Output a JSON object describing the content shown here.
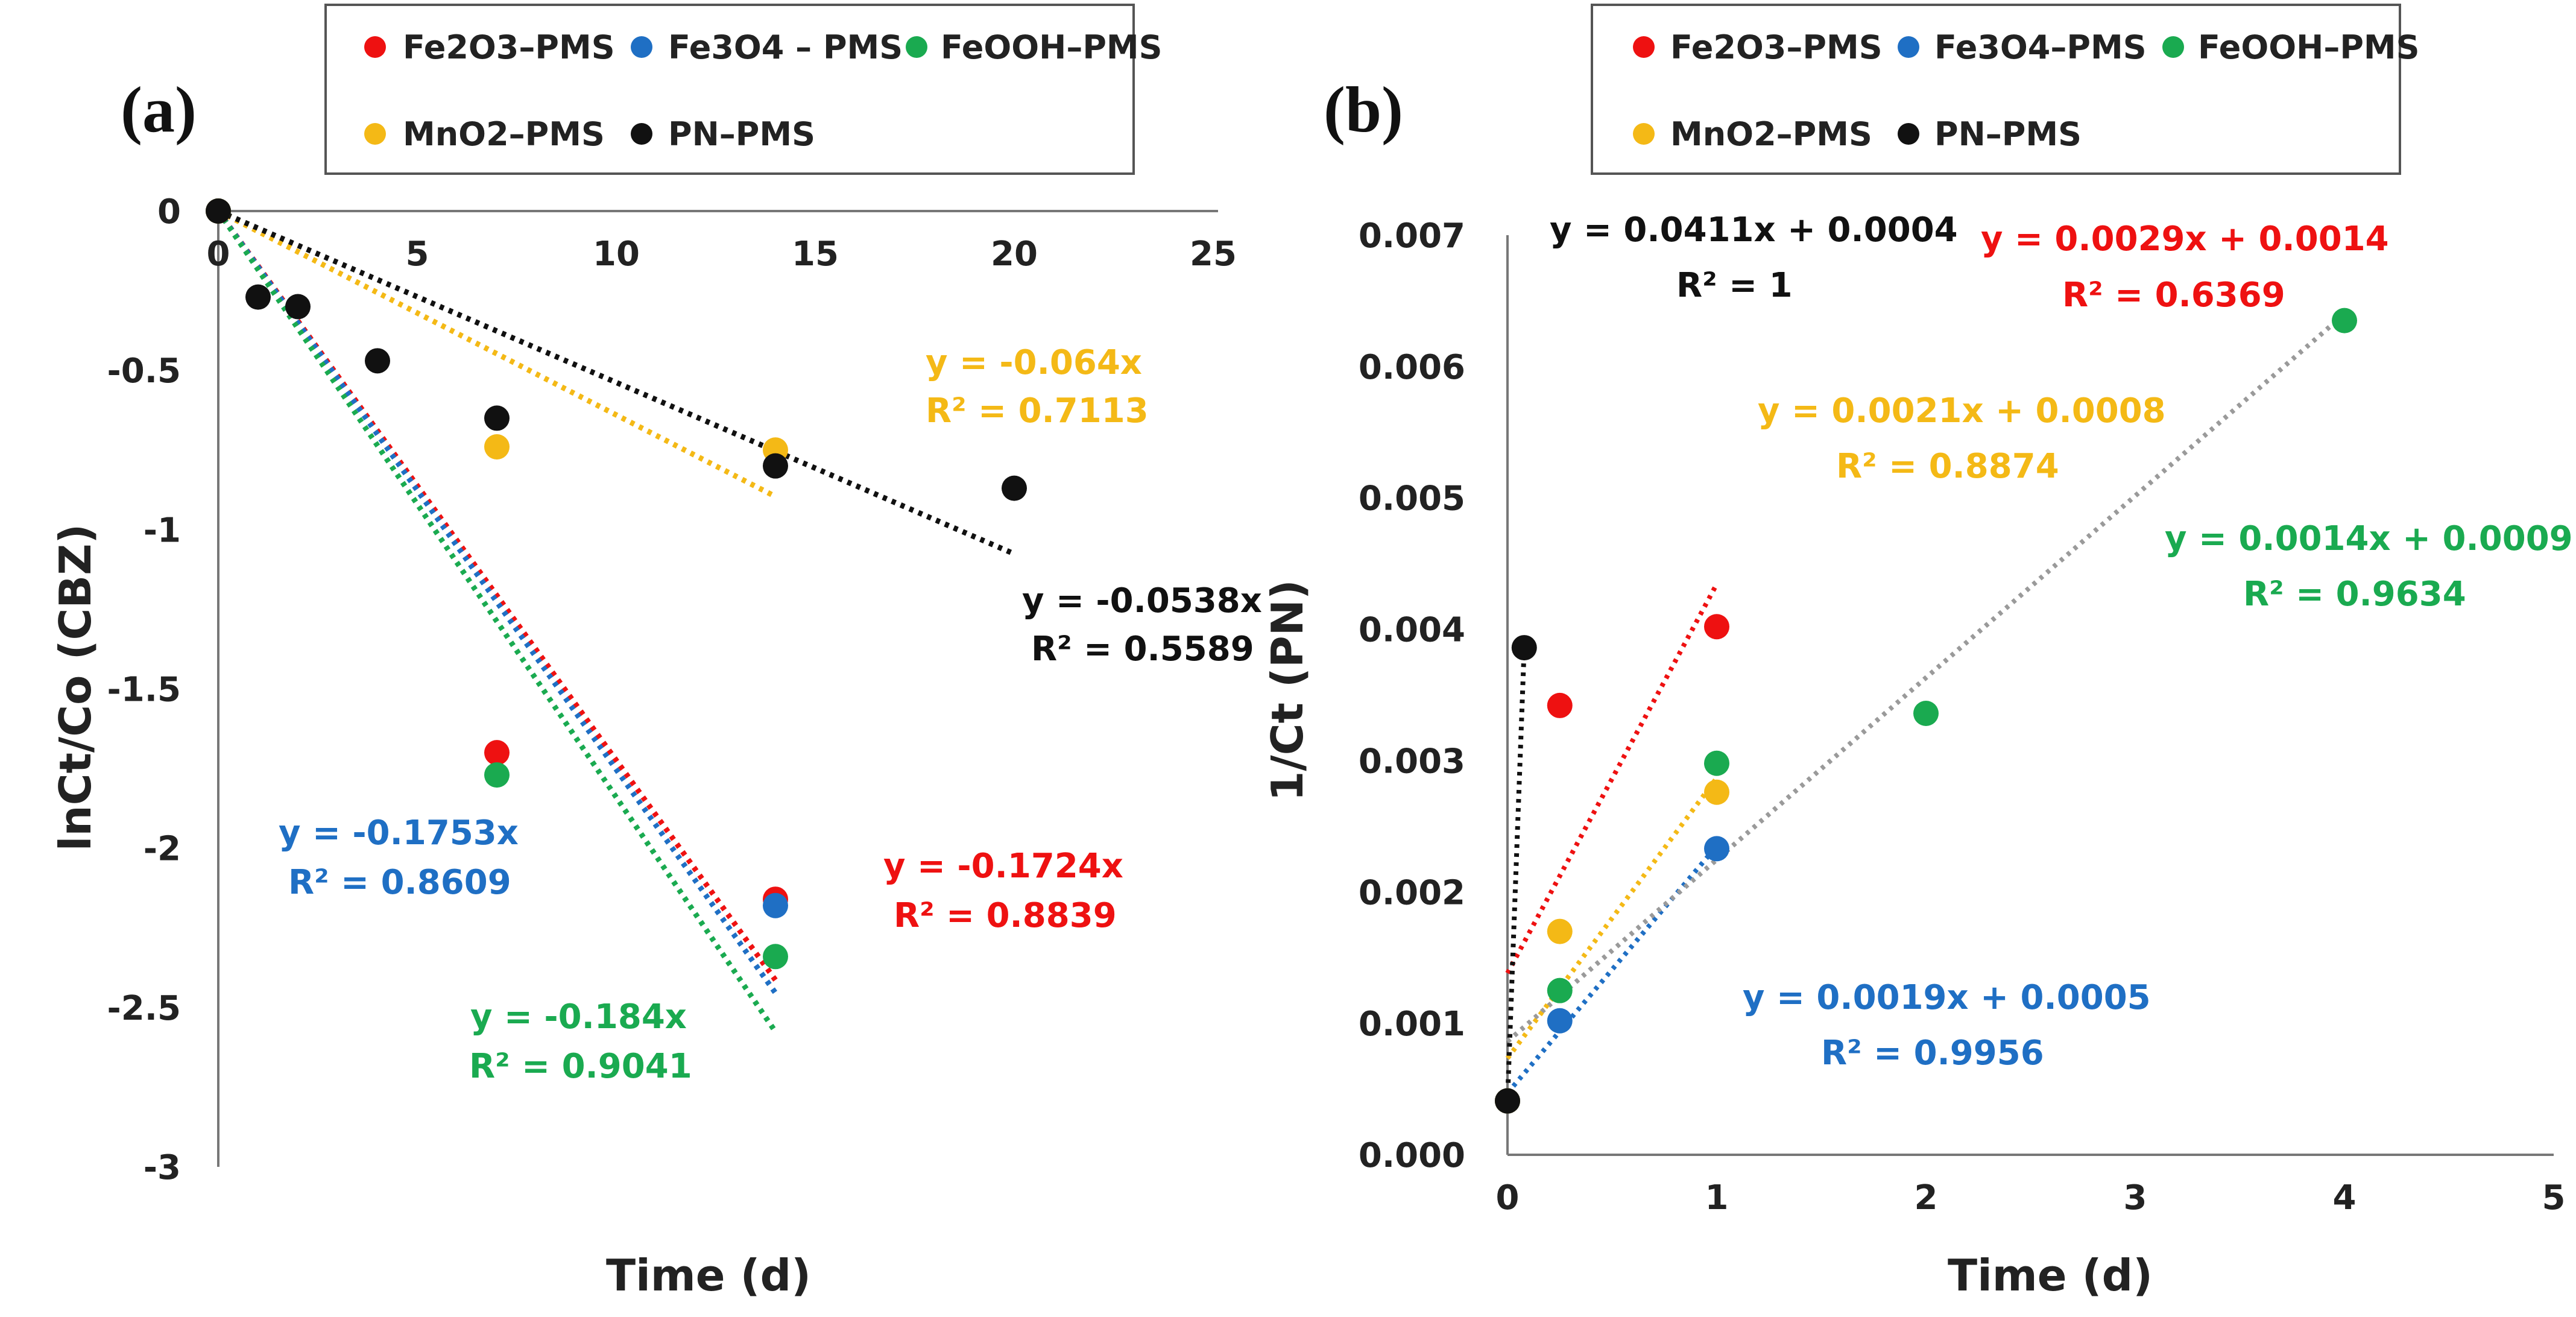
{
  "chart_data": [
    {
      "type": "scatter",
      "panel_label": "(a)",
      "xlabel": "Time (d)",
      "ylabel": "lnCt/Co (CBZ)",
      "xlim": [
        0,
        25
      ],
      "ylim": [
        -3,
        0
      ],
      "x_ticks": [
        "0",
        "5",
        "10",
        "15",
        "20",
        "25"
      ],
      "y_ticks": [
        "0",
        "-0.5",
        "-1",
        "-1.5",
        "-2",
        "-2.5",
        "-3"
      ],
      "legend": [
        "Fe2O3–PMS",
        "Fe3O4 – PMS",
        "FeOOH–PMS",
        "MnO2–PMS",
        "PN–PMS"
      ],
      "series": [
        {
          "name": "Fe2O3–PMS",
          "color": "#ee1111",
          "x": [
            0,
            7,
            14
          ],
          "y": [
            0,
            -1.7,
            -2.16
          ],
          "trend_slope": -0.1724,
          "trend_x": [
            0,
            14
          ],
          "equation": "y = -0.1724x",
          "r2": "R² = 0.8839"
        },
        {
          "name": "Fe3O4 – PMS",
          "color": "#1f6fc4",
          "x": [
            0,
            14
          ],
          "y": [
            0,
            -2.18
          ],
          "trend_slope": -0.1753,
          "trend_x": [
            0,
            14
          ],
          "equation": "y = -0.1753x",
          "r2": "R² = 0.8609"
        },
        {
          "name": "FeOOH–PMS",
          "color": "#1aaa50",
          "x": [
            0,
            7,
            14
          ],
          "y": [
            0,
            -1.77,
            -2.34
          ],
          "trend_slope": -0.184,
          "trend_x": [
            0,
            14
          ],
          "equation": "y = -0.184x",
          "r2": "R² = 0.9041"
        },
        {
          "name": "MnO2–PMS",
          "color": "#f4b916",
          "x": [
            0,
            7,
            14
          ],
          "y": [
            0,
            -0.74,
            -0.75
          ],
          "trend_slope": -0.064,
          "trend_x": [
            0,
            14
          ],
          "equation": "y = -0.064x",
          "r2": "R² = 0.7113"
        },
        {
          "name": "PN–PMS",
          "color": "#111111",
          "x": [
            0,
            1,
            2,
            4,
            7,
            14,
            20
          ],
          "y": [
            0,
            -0.27,
            -0.3,
            -0.47,
            -0.65,
            -0.8,
            -0.87
          ],
          "trend_slope": -0.0538,
          "trend_x": [
            0,
            20
          ],
          "equation": "y = -0.0538x",
          "r2": "R² = 0.5589"
        }
      ]
    },
    {
      "type": "scatter",
      "panel_label": "(b)",
      "xlabel": "Time (d)",
      "ylabel": "1/Ct (PN)",
      "xlim": [
        0,
        5
      ],
      "ylim": [
        0,
        0.007
      ],
      "x_ticks": [
        "0",
        "1",
        "2",
        "3",
        "4",
        "5"
      ],
      "y_ticks": [
        "0.000",
        "0.001",
        "0.002",
        "0.003",
        "0.004",
        "0.005",
        "0.006",
        "0.007"
      ],
      "legend": [
        "Fe2O3–PMS",
        "Fe3O4–PMS",
        "FeOOH–PMS",
        "MnO2–PMS",
        "PN–PMS"
      ],
      "series": [
        {
          "name": "Fe2O3–PMS",
          "color": "#ee1111",
          "x": [
            0,
            0.25,
            1
          ],
          "y": [
            0.00041,
            0.00342,
            0.00402
          ],
          "equation": "y = 0.0029x + 0.0014",
          "r2": "R² = 0.6369"
        },
        {
          "name": "Fe3O4–PMS",
          "color": "#1f6fc4",
          "x": [
            0,
            0.25,
            1
          ],
          "y": [
            0.00041,
            0.00102,
            0.00233
          ],
          "equation": "y = 0.0019x + 0.0005",
          "r2": "R² = 0.9956"
        },
        {
          "name": "FeOOH–PMS",
          "color": "#1aaa50",
          "x": [
            0,
            0.25,
            1,
            2,
            4
          ],
          "y": [
            0.00041,
            0.00125,
            0.00298,
            0.00336,
            0.00635
          ],
          "equation": "y = 0.0014x + 0.0009",
          "r2": "R² = 0.9634"
        },
        {
          "name": "MnO2–PMS",
          "color": "#f4b916",
          "x": [
            0,
            0.25,
            1
          ],
          "y": [
            0.00041,
            0.0017,
            0.00276
          ],
          "equation": "y = 0.0021x + 0.0008",
          "r2": "R² = 0.8874"
        },
        {
          "name": "PN–PMS",
          "color": "#111111",
          "x": [
            0,
            0.08
          ],
          "y": [
            0.00041,
            0.00386
          ],
          "equation": "y = 0.0411x + 0.0004",
          "r2": "R² = 1"
        }
      ]
    }
  ]
}
